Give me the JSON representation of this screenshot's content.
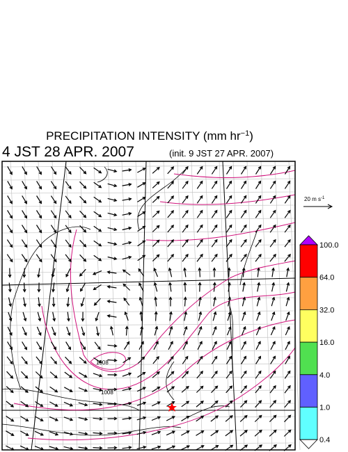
{
  "title": {
    "main": "PRECIPITATION INTENSITY (mm hr",
    "sup": "−1",
    "close": ")"
  },
  "valid_time": "4 JST 28 APR. 2007",
  "init_time": "(init. 9 JST 27 APR. 2007)",
  "reference_vector": {
    "label": "20 m s",
    "sup": "-1"
  },
  "colorbar": {
    "levels": [
      "100.0",
      "64.0",
      "32.0",
      "16.0",
      "4.0",
      "1.0",
      "0.4"
    ],
    "colors": [
      "#ff0000",
      "#ffa040",
      "#ffff60",
      "#50e050",
      "#6060ff",
      "#60ffff"
    ],
    "over_color": "#b000ff",
    "under_color": "#ffffff"
  },
  "contour_labels": [
    "1008",
    "1008"
  ]
}
